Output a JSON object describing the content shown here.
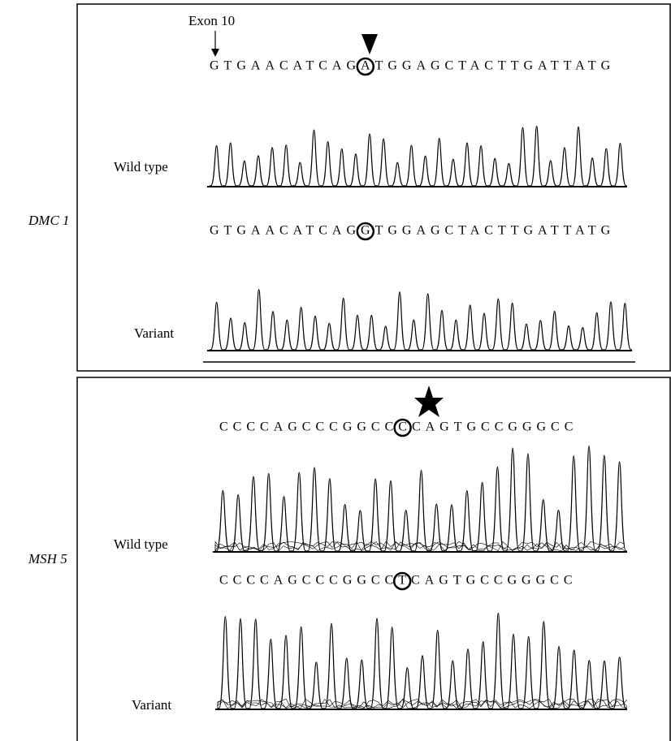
{
  "figure": {
    "panels": [
      {
        "gene": "DMC 1",
        "exon_label": "Exon 10",
        "rows": [
          {
            "label": "Wild type",
            "prefix": "GTGAACATCAG",
            "mutation": "A",
            "suffix": "TGGAGCTACTTGATTATG"
          },
          {
            "label": "Variant",
            "prefix": "GTGAACATCAG",
            "mutation": "G",
            "suffix": "TGGAGCTACTTGATTATG"
          }
        ]
      },
      {
        "gene": "MSH 5",
        "rows": [
          {
            "label": "Wild type",
            "prefix": "CCCCAGCCCGGCC",
            "mutation": "C",
            "suffix": "CAGTGCCGGGCC"
          },
          {
            "label": "Variant",
            "prefix": "CCCCAGCCCGGCC",
            "mutation": "T",
            "suffix": "CAGTGCCGGGCC"
          }
        ]
      }
    ]
  }
}
